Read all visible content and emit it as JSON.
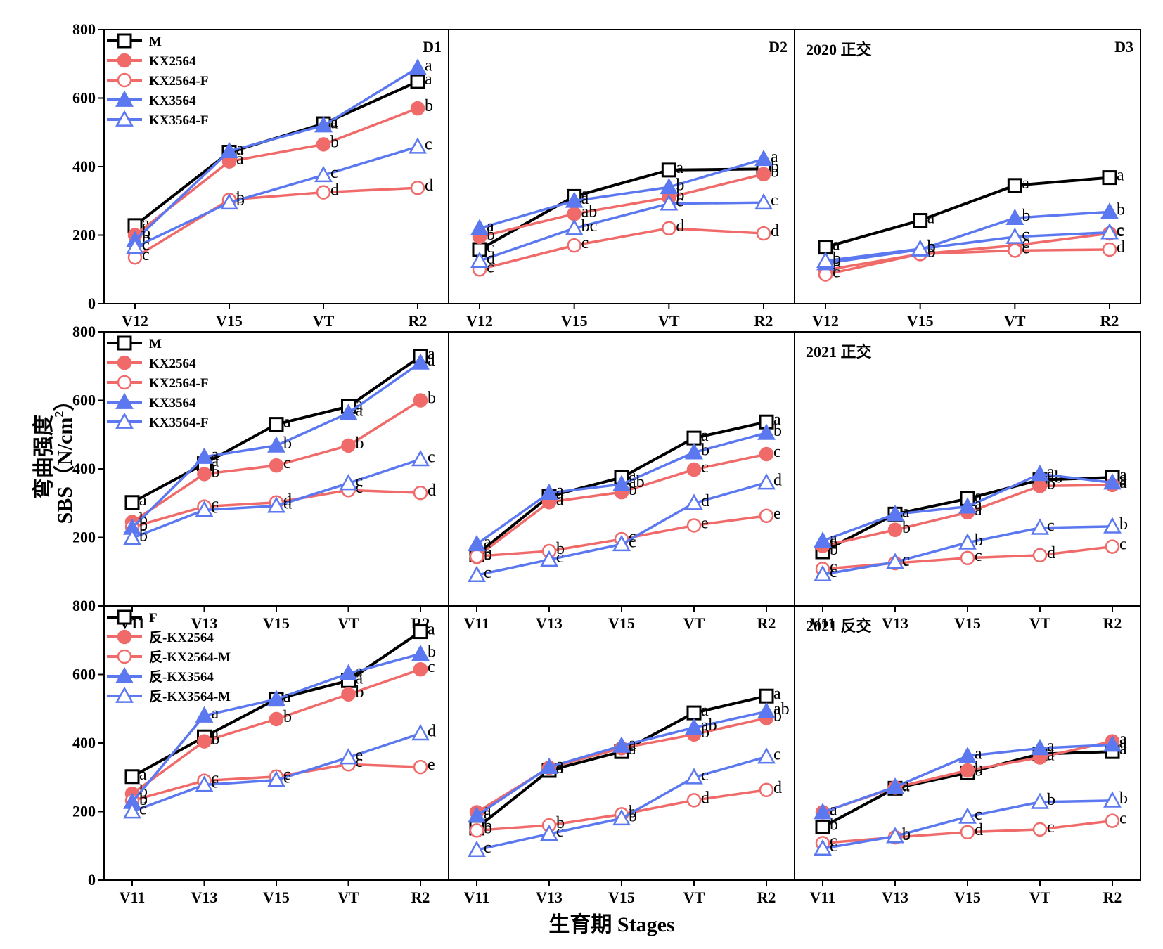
{
  "figure": {
    "xlabel": "生育期 Stages",
    "ylabel": "弯曲强度",
    "ylabel_unit": "SBS（N/cm",
    "ylabel_sup": "2",
    "ylabel_close": "）"
  },
  "colors": {
    "black_series": "#000000",
    "red_series": "#f06a6a",
    "blue_series": "#5b78f0"
  },
  "chart_data": [
    {
      "type": "line",
      "row": 0,
      "col": 0,
      "panel_label": "D1",
      "title": "",
      "categories": [
        "V12",
        "V15",
        "VT",
        "R2"
      ],
      "ylim": [
        0,
        800
      ],
      "yticks": [
        0,
        200,
        400,
        600,
        800
      ],
      "legend": [
        "M",
        "KX2564",
        "KX2564-F",
        "KX3564",
        "KX3564-F"
      ],
      "series": [
        {
          "name": "M",
          "values": [
            228,
            442,
            525,
            648
          ],
          "letters": [
            "a",
            "a",
            "a",
            "a"
          ]
        },
        {
          "name": "KX2564",
          "values": [
            200,
            415,
            465,
            570
          ],
          "letters": [
            "b",
            "a",
            "b",
            "b"
          ]
        },
        {
          "name": "KX2564-F",
          "values": [
            135,
            303,
            325,
            338
          ],
          "letters": [
            "c",
            "b",
            "d",
            "d"
          ]
        },
        {
          "name": "KX3564",
          "values": [
            185,
            445,
            520,
            688
          ],
          "letters": [
            "b",
            "a",
            "a",
            "a"
          ]
        },
        {
          "name": "KX3564-F",
          "values": [
            165,
            295,
            375,
            458
          ],
          "letters": [
            "c",
            "b",
            "c",
            "c"
          ]
        }
      ]
    },
    {
      "type": "line",
      "row": 0,
      "col": 1,
      "panel_label": "D2",
      "title": "",
      "categories": [
        "V12",
        "V15",
        "VT",
        "R2"
      ],
      "ylim": [
        0,
        800
      ],
      "yticks": [
        0,
        200,
        400,
        600,
        800
      ],
      "series": [
        {
          "name": "M",
          "values": [
            158,
            313,
            390,
            393
          ],
          "letters": [
            "c",
            "a",
            "a",
            "b"
          ]
        },
        {
          "name": "KX2564",
          "values": [
            195,
            262,
            310,
            378
          ],
          "letters": [
            "b",
            "ab",
            "b",
            "b"
          ]
        },
        {
          "name": "KX2564-F",
          "values": [
            100,
            170,
            220,
            205
          ],
          "letters": [
            "c",
            "c",
            "d",
            "d"
          ]
        },
        {
          "name": "KX3564",
          "values": [
            220,
            300,
            340,
            422
          ],
          "letters": [
            "a",
            "a",
            "b",
            "a"
          ]
        },
        {
          "name": "KX3564-F",
          "values": [
            125,
            220,
            292,
            295
          ],
          "letters": [
            "d",
            "bc",
            "c",
            "c"
          ]
        }
      ]
    },
    {
      "type": "line",
      "row": 0,
      "col": 2,
      "panel_label": "D3",
      "title": "2020  正交",
      "categories": [
        "V12",
        "V15",
        "VT",
        "R2"
      ],
      "ylim": [
        0,
        800
      ],
      "yticks": [
        0,
        200,
        400,
        600,
        800
      ],
      "series": [
        {
          "name": "M",
          "values": [
            165,
            243,
            345,
            368
          ],
          "letters": [
            "a",
            "a",
            "a",
            "a"
          ]
        },
        {
          "name": "KX2564",
          "values": [
            98,
            145,
            170,
            205
          ],
          "letters": [
            "c",
            "b",
            "c",
            "c"
          ]
        },
        {
          "name": "KX2564-F",
          "values": [
            85,
            145,
            155,
            158
          ],
          "letters": [
            "c",
            "b",
            "c",
            "d"
          ]
        },
        {
          "name": "KX3564",
          "values": [
            118,
            158,
            250,
            268
          ],
          "letters": [
            "b",
            "b",
            "b",
            "b"
          ]
        },
        {
          "name": "KX3564-F",
          "values": [
            125,
            160,
            195,
            208
          ],
          "letters": [
            "b",
            "b",
            "c",
            "c"
          ]
        }
      ]
    },
    {
      "type": "line",
      "row": 1,
      "col": 0,
      "panel_label": "",
      "title": "",
      "categories": [
        "V11",
        "V13",
        "V15",
        "VT",
        "R2"
      ],
      "ylim": [
        0,
        800
      ],
      "yticks": [
        200,
        400,
        600,
        800
      ],
      "legend": [
        "M",
        "KX2564",
        "KX2564-F",
        "KX3564",
        "KX3564-F"
      ],
      "series": [
        {
          "name": "M",
          "values": [
            302,
            415,
            530,
            582,
            728
          ],
          "letters": [
            "a",
            "a",
            "a",
            "a",
            "a"
          ]
        },
        {
          "name": "KX2564",
          "values": [
            245,
            385,
            410,
            468,
            600
          ],
          "letters": [
            "b",
            "b",
            "c",
            "b",
            "b"
          ]
        },
        {
          "name": "KX2564-F",
          "values": [
            230,
            290,
            302,
            338,
            330
          ],
          "letters": [
            "b",
            "c",
            "d",
            "c",
            "d"
          ]
        },
        {
          "name": "KX3564",
          "values": [
            228,
            435,
            468,
            563,
            710
          ],
          "letters": [
            "b",
            "a",
            "b",
            "a",
            "a"
          ]
        },
        {
          "name": "KX3564-F",
          "values": [
            198,
            280,
            292,
            358,
            428
          ],
          "letters": [
            "b",
            "c",
            "d",
            "c",
            "c"
          ]
        }
      ]
    },
    {
      "type": "line",
      "row": 1,
      "col": 1,
      "panel_label": "",
      "title": "",
      "categories": [
        "V11",
        "V13",
        "V15",
        "VT",
        "R2"
      ],
      "ylim": [
        0,
        800
      ],
      "yticks": [
        200,
        400,
        600,
        800
      ],
      "series": [
        {
          "name": "M",
          "values": [
            150,
            320,
            375,
            490,
            537
          ],
          "letters": [
            "b",
            "a",
            "a",
            "a",
            "a"
          ]
        },
        {
          "name": "KX2564",
          "values": [
            143,
            303,
            332,
            398,
            443
          ],
          "letters": [
            "b",
            "a",
            "b",
            "c",
            "c"
          ]
        },
        {
          "name": "KX2564-F",
          "values": [
            145,
            160,
            195,
            235,
            263
          ],
          "letters": [
            "b",
            "b",
            "c",
            "e",
            "e"
          ]
        },
        {
          "name": "KX3564",
          "values": [
            180,
            330,
            355,
            448,
            505
          ],
          "letters": [
            "a",
            "a",
            "ab",
            "b",
            "b"
          ]
        },
        {
          "name": "KX3564-F",
          "values": [
            90,
            135,
            180,
            300,
            360
          ],
          "letters": [
            "c",
            "c",
            "c",
            "d",
            "d"
          ]
        }
      ]
    },
    {
      "type": "line",
      "row": 1,
      "col": 2,
      "panel_label": "",
      "title": "2021 正交",
      "categories": [
        "V11",
        "V13",
        "V15",
        "VT",
        "R2"
      ],
      "ylim": [
        0,
        800
      ],
      "yticks": [
        200,
        400,
        600,
        800
      ],
      "series": [
        {
          "name": "M",
          "values": [
            158,
            268,
            313,
            368,
            375
          ],
          "letters": [
            "b",
            "a",
            "a",
            "ab",
            "a"
          ]
        },
        {
          "name": "KX2564",
          "values": [
            175,
            222,
            273,
            350,
            353
          ],
          "letters": [
            "b",
            "b",
            "a",
            "b",
            "a"
          ]
        },
        {
          "name": "KX2564-F",
          "values": [
            108,
            125,
            140,
            148,
            173
          ],
          "letters": [
            "c",
            "c",
            "c",
            "d",
            "c"
          ]
        },
        {
          "name": "KX3564",
          "values": [
            190,
            268,
            290,
            385,
            360
          ],
          "letters": [
            "a",
            "a",
            "a",
            "a",
            "a"
          ]
        },
        {
          "name": "KX3564-F",
          "values": [
            92,
            128,
            185,
            228,
            232
          ],
          "letters": [
            "c",
            "c",
            "b",
            "c",
            "b"
          ]
        }
      ]
    },
    {
      "type": "line",
      "row": 2,
      "col": 0,
      "panel_label": "",
      "title": "",
      "categories": [
        "V11",
        "V13",
        "V15",
        "VT",
        "R2"
      ],
      "ylim": [
        0,
        800
      ],
      "yticks": [
        0,
        200,
        400,
        600,
        800
      ],
      "legend": [
        "F",
        "反-KX2564",
        "反-KX2564-M",
        "反-KX3564",
        "反-KX3564-M"
      ],
      "series": [
        {
          "name": "F",
          "values": [
            302,
            418,
            528,
            582,
            725
          ],
          "letters": [
            "a",
            "a",
            "a",
            "a",
            "a"
          ]
        },
        {
          "name": "反-KX2564",
          "values": [
            252,
            405,
            470,
            542,
            615
          ],
          "letters": [
            "b",
            "b",
            "b",
            "b",
            "c"
          ]
        },
        {
          "name": "反-KX2564-M",
          "values": [
            232,
            290,
            302,
            338,
            330
          ],
          "letters": [
            "b",
            "c",
            "c",
            "c",
            "e"
          ]
        },
        {
          "name": "反-KX3564",
          "values": [
            228,
            480,
            528,
            603,
            660
          ],
          "letters": [
            "b",
            "a",
            "a",
            "a",
            "b"
          ]
        },
        {
          "name": "反-KX3564-M",
          "values": [
            200,
            278,
            292,
            358,
            428
          ],
          "letters": [
            "c",
            "c",
            "c",
            "e",
            "d"
          ]
        }
      ]
    },
    {
      "type": "line",
      "row": 2,
      "col": 1,
      "panel_label": "",
      "title": "",
      "categories": [
        "V11",
        "V13",
        "V15",
        "VT",
        "R2"
      ],
      "ylim": [
        0,
        800
      ],
      "yticks": [
        0,
        200,
        400,
        600,
        800
      ],
      "series": [
        {
          "name": "F",
          "values": [
            152,
            320,
            375,
            488,
            537
          ],
          "letters": [
            "b",
            "a",
            "a",
            "a",
            "a"
          ]
        },
        {
          "name": "反-KX2564",
          "values": [
            198,
            328,
            385,
            425,
            473
          ],
          "letters": [
            "a",
            "a",
            "a",
            "b",
            "b"
          ]
        },
        {
          "name": "反-KX2564-M",
          "values": [
            145,
            160,
            192,
            233,
            263
          ],
          "letters": [
            "b",
            "b",
            "b",
            "d",
            "d"
          ]
        },
        {
          "name": "反-KX3564",
          "values": [
            188,
            330,
            392,
            445,
            492
          ],
          "letters": [
            "a",
            "a",
            "a",
            "ab",
            "ab"
          ]
        },
        {
          "name": "反-KX3564-M",
          "values": [
            88,
            135,
            180,
            300,
            360
          ],
          "letters": [
            "c",
            "c",
            "b",
            "c",
            "c"
          ]
        }
      ]
    },
    {
      "type": "line",
      "row": 2,
      "col": 2,
      "panel_label": "",
      "title": "2021  反交",
      "categories": [
        "V11",
        "V13",
        "V15",
        "VT",
        "R2"
      ],
      "ylim": [
        0,
        800
      ],
      "yticks": [
        0,
        200,
        400,
        600,
        800
      ],
      "series": [
        {
          "name": "F",
          "values": [
            155,
            268,
            313,
            368,
            375
          ],
          "letters": [
            "b",
            "a",
            "b",
            "a",
            "a"
          ]
        },
        {
          "name": "反-KX2564",
          "values": [
            198,
            270,
            320,
            358,
            405
          ],
          "letters": [
            "a",
            "a",
            "b",
            "a",
            "a"
          ]
        },
        {
          "name": "反-KX2564-M",
          "values": [
            108,
            125,
            140,
            148,
            173
          ],
          "letters": [
            "c",
            "b",
            "d",
            "c",
            "c"
          ]
        },
        {
          "name": "反-KX3564",
          "values": [
            198,
            272,
            362,
            385,
            395
          ],
          "letters": [
            "a",
            "a",
            "a",
            "a",
            "a"
          ]
        },
        {
          "name": "反-KX3564-M",
          "values": [
            92,
            128,
            185,
            228,
            232
          ],
          "letters": [
            "c",
            "b",
            "c",
            "b",
            "b"
          ]
        }
      ]
    }
  ]
}
